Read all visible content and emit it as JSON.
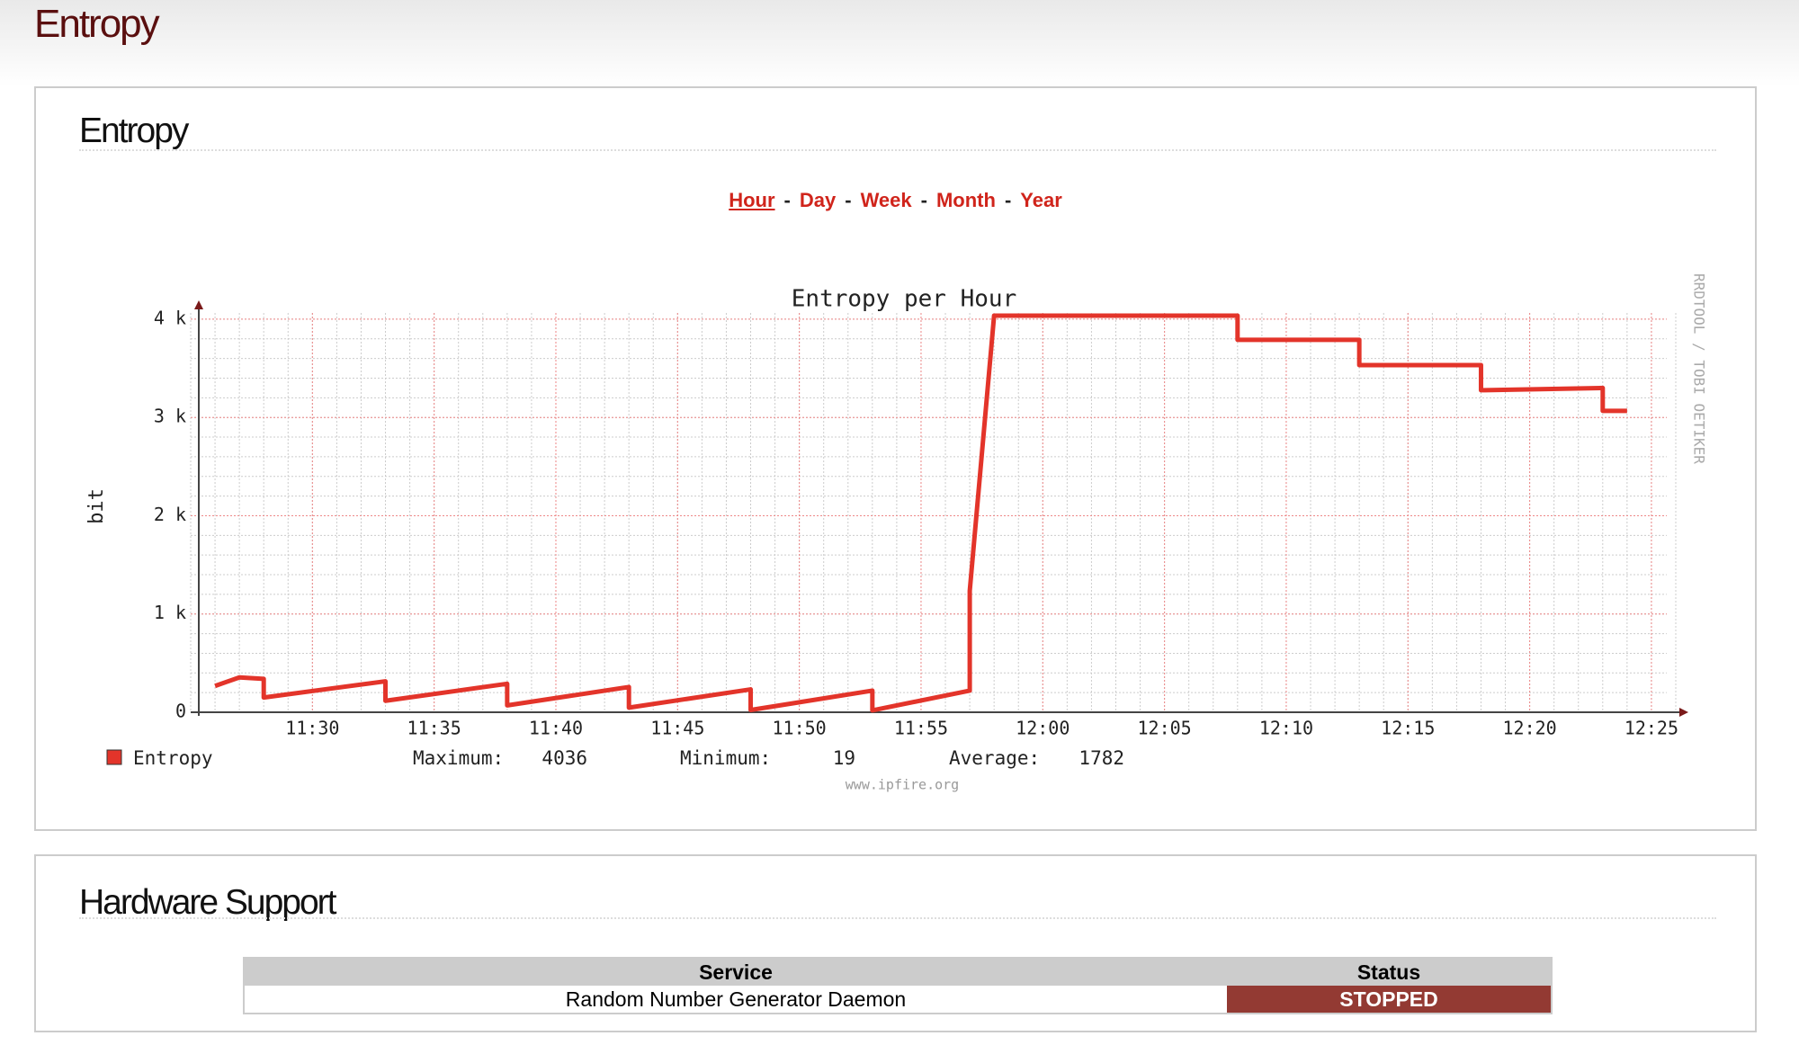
{
  "page_title": "Entropy",
  "panel_title": "Entropy",
  "ranges": [
    "Hour",
    "Day",
    "Week",
    "Month",
    "Year"
  ],
  "chart_data": {
    "type": "line",
    "title": "Entropy per Hour",
    "y_label": "bit",
    "x": [
      "11:26",
      "11:27",
      "11:28",
      "11:28",
      "11:33",
      "11:33",
      "11:38",
      "11:38",
      "11:43",
      "11:43",
      "11:48",
      "11:48",
      "11:53",
      "11:53",
      "11:57",
      "11:57",
      "11:58",
      "12:08",
      "12:08",
      "12:13",
      "12:13",
      "12:18",
      "12:18",
      "12:23",
      "12:23",
      "12:24"
    ],
    "series": [
      {
        "name": "Entropy",
        "color": "#e3342a",
        "values": [
          268,
          355,
          340,
          150,
          315,
          117,
          290,
          70,
          257,
          47,
          233,
          23,
          220,
          19,
          220,
          1236,
          4036,
          4036,
          3790,
          3790,
          3533,
          3533,
          3277,
          3300,
          3067,
          3067
        ]
      }
    ],
    "xlim": [
      "11:25",
      "12:26"
    ],
    "xticks": [
      "11:30",
      "11:35",
      "11:40",
      "11:45",
      "11:50",
      "11:55",
      "12:00",
      "12:05",
      "12:10",
      "12:15",
      "12:20",
      "12:25"
    ],
    "ylim": [
      0,
      4100
    ],
    "yticks": [
      0,
      {
        "value": 1000,
        "label": "1 k"
      },
      {
        "value": 2000,
        "label": "2 k"
      },
      {
        "value": 3000,
        "label": "3 k"
      },
      {
        "value": 4000,
        "label": "4 k"
      }
    ],
    "grid": true,
    "minor_grid": {
      "x_minutes": 1,
      "y": 200
    },
    "stats": [
      {
        "label": "Maximum:",
        "value": 4036
      },
      {
        "label": "Minimum:",
        "value": 19
      },
      {
        "label": "Average:",
        "value": 1782
      }
    ],
    "watermark": "RRDTOOL / TOBI OETIKER",
    "footer": "www.ipfire.org"
  },
  "hardware": {
    "title": "Hardware Support",
    "header": [
      "Service",
      "Status"
    ],
    "rows": [
      [
        "Random Number Generator Daemon",
        "STOPPED"
      ]
    ]
  }
}
